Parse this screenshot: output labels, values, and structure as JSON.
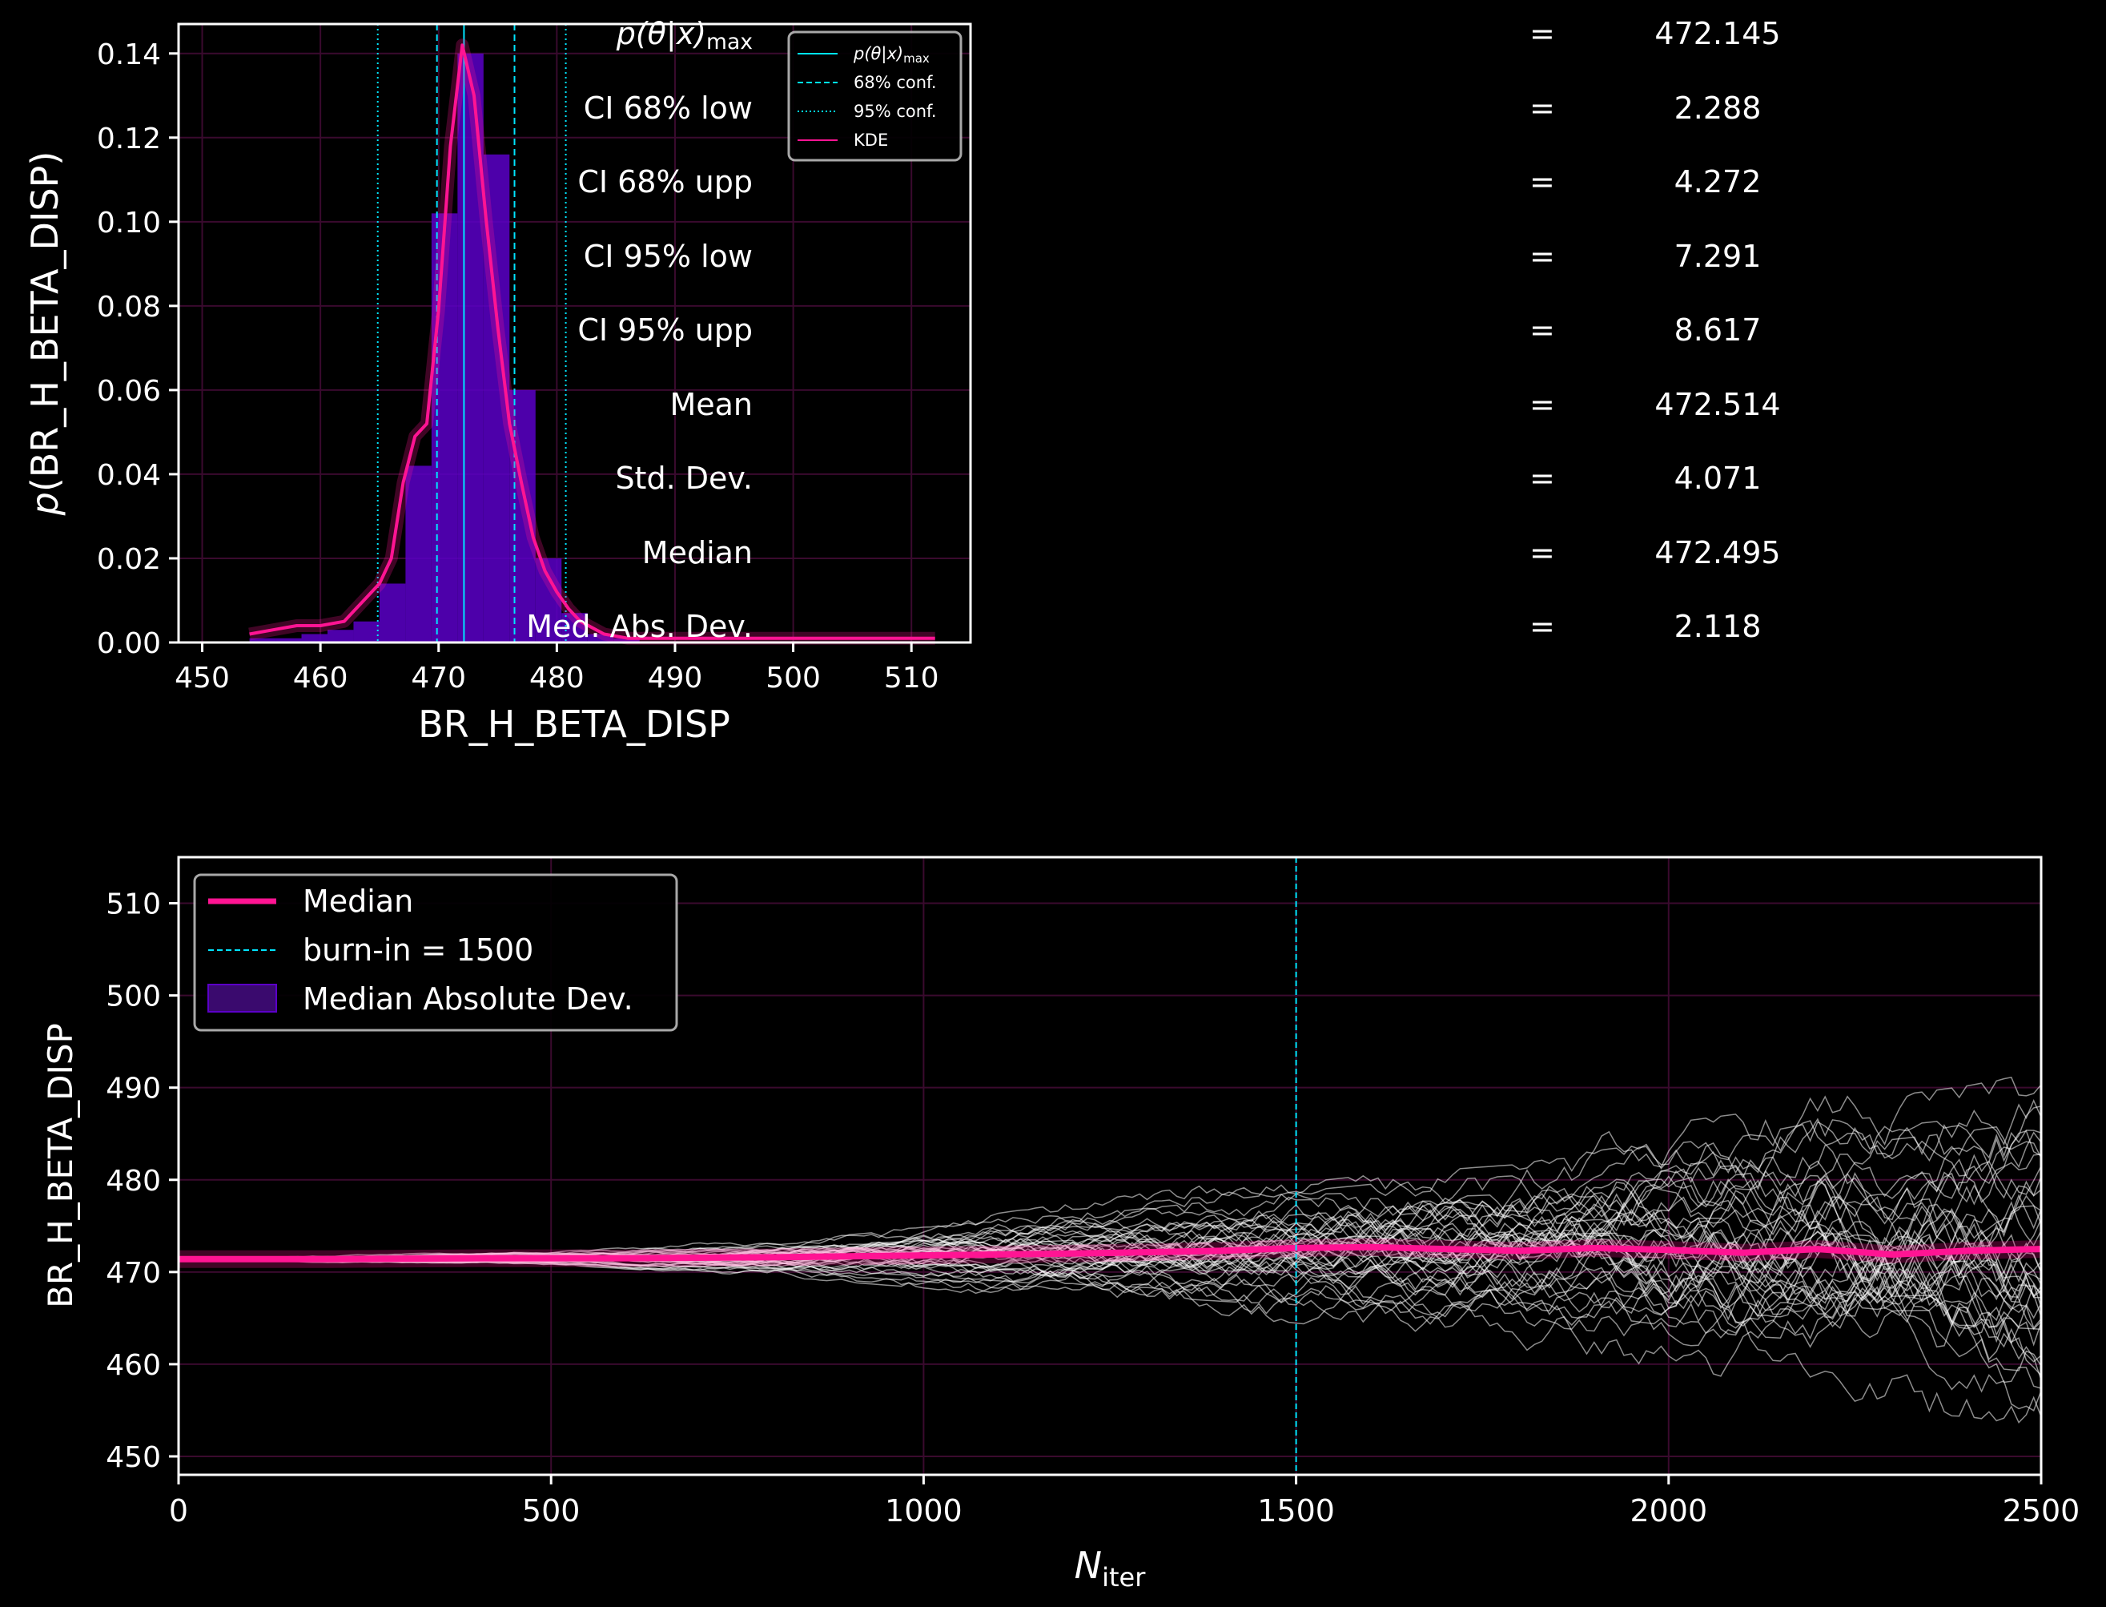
{
  "colors": {
    "background": "#000000",
    "kde": "#ff1493",
    "hist": "#5b00c8",
    "conf": "#00e5ff",
    "chain": "#ffffff",
    "grid": "#3a0a2e"
  },
  "chart_data": [
    {
      "type": "bar",
      "xlabel": "BR_H_BETA_DISP",
      "ylabel": "p(BR_H_BETA_DISP)",
      "xlim": [
        448,
        515
      ],
      "ylim": [
        0,
        0.147
      ],
      "x_ticks": [
        "450",
        "460",
        "470",
        "480",
        "490",
        "500",
        "510"
      ],
      "y_ticks": [
        "0.00",
        "0.02",
        "0.04",
        "0.06",
        "0.08",
        "0.10",
        "0.12",
        "0.14"
      ],
      "grid": true,
      "legend_position": "top-right",
      "legend": {
        "pmax": "p(θ|x)max",
        "ci68": "68% conf.",
        "ci95": "95% conf.",
        "kde": "KDE"
      },
      "vlines": {
        "pmax": 472.145,
        "ci68": [
          469.86,
          476.42
        ],
        "ci95": [
          464.85,
          480.76
        ]
      },
      "histogram": {
        "bin_edges": [
          454,
          456.2,
          458.4,
          460.6,
          462.8,
          465,
          467.2,
          469.4,
          471.6,
          473.8,
          476,
          478.2,
          480.4,
          482.6,
          484.8,
          487
        ],
        "values": [
          0.001,
          0.001,
          0.002,
          0.003,
          0.005,
          0.014,
          0.042,
          0.102,
          0.14,
          0.116,
          0.06,
          0.02,
          0.007,
          0.002,
          0.001
        ]
      },
      "kde": {
        "x": [
          454,
          456,
          458,
          460,
          462,
          463,
          464,
          465,
          466,
          467,
          468,
          469,
          470,
          471,
          472,
          473,
          474,
          475,
          476,
          477,
          478,
          479,
          480,
          481,
          482,
          484,
          486,
          490,
          500,
          512
        ],
        "y": [
          0.002,
          0.003,
          0.004,
          0.004,
          0.005,
          0.008,
          0.011,
          0.014,
          0.02,
          0.038,
          0.049,
          0.052,
          0.079,
          0.118,
          0.142,
          0.13,
          0.101,
          0.075,
          0.052,
          0.038,
          0.025,
          0.017,
          0.012,
          0.008,
          0.005,
          0.002,
          0.001,
          0.001,
          0.001,
          0.001
        ]
      }
    },
    {
      "type": "line",
      "xlabel": "N",
      "xlabel_sub": "iter",
      "ylabel": "BR_H_BETA_DISP",
      "xlim": [
        0,
        2500
      ],
      "ylim": [
        448,
        515
      ],
      "x_ticks": [
        "0",
        "500",
        "1000",
        "1500",
        "2000",
        "2500"
      ],
      "y_ticks": [
        "450",
        "460",
        "470",
        "480",
        "490",
        "500",
        "510"
      ],
      "grid": true,
      "legend_position": "top-left",
      "legend": {
        "median": "Median",
        "burnin": "burn-in = 1500",
        "mad": "Median Absolute Dev."
      },
      "burn_in": 1500,
      "num_chains": 40,
      "median": {
        "x": [
          0,
          200,
          400,
          600,
          800,
          1000,
          1200,
          1400,
          1500,
          1600,
          1700,
          1800,
          1900,
          2000,
          2100,
          2200,
          2300,
          2400,
          2500
        ],
        "y": [
          471.4,
          471.4,
          471.5,
          471.5,
          471.6,
          471.8,
          472.0,
          472.3,
          472.6,
          472.7,
          472.5,
          472.3,
          472.6,
          472.4,
          472.1,
          472.5,
          471.9,
          472.3,
          472.5
        ]
      },
      "spread_envelope": {
        "x": [
          0,
          500,
          800,
          1000,
          1200,
          1500,
          1800,
          2000,
          2200,
          2400,
          2500
        ],
        "half_width": [
          0.2,
          0.5,
          1.5,
          2.5,
          4,
          6,
          8,
          10,
          12,
          13,
          14
        ]
      }
    }
  ],
  "stats": [
    {
      "label": "p(θ|x)",
      "label_sub": "max",
      "eq": "=",
      "value": "472.145"
    },
    {
      "label": "CI 68% low",
      "label_sub": "",
      "eq": "=",
      "value": "2.288"
    },
    {
      "label": "CI 68% upp",
      "label_sub": "",
      "eq": "=",
      "value": "4.272"
    },
    {
      "label": "CI 95% low",
      "label_sub": "",
      "eq": "=",
      "value": "7.291"
    },
    {
      "label": "CI 95% upp",
      "label_sub": "",
      "eq": "=",
      "value": "8.617"
    },
    {
      "label": "Mean",
      "label_sub": "",
      "eq": "=",
      "value": "472.514"
    },
    {
      "label": "Std.  Dev.",
      "label_sub": "",
      "eq": "=",
      "value": "4.071"
    },
    {
      "label": "Median",
      "label_sub": "",
      "eq": "=",
      "value": "472.495"
    },
    {
      "label": "Med. Abs. Dev.",
      "label_sub": "",
      "eq": "=",
      "value": "2.118"
    }
  ]
}
